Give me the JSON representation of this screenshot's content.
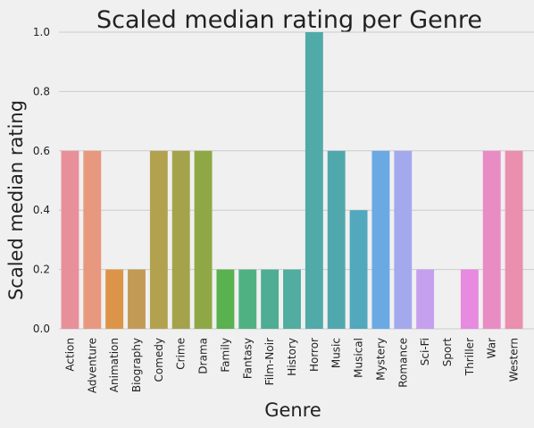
{
  "chart_data": {
    "type": "bar",
    "title": "Scaled median rating per Genre",
    "xlabel": "Genre",
    "ylabel": "Scaled median rating",
    "ylim": [
      0,
      1.0
    ],
    "yticks": [
      "0.0",
      "0.2",
      "0.4",
      "0.6",
      "0.8",
      "1.0"
    ],
    "grid": true,
    "categories": [
      "Action",
      "Adventure",
      "Animation",
      "Biography",
      "Comedy",
      "Crime",
      "Drama",
      "Family",
      "Fantasy",
      "Film-Noir",
      "History",
      "Horror",
      "Music",
      "Musical",
      "Mystery",
      "Romance",
      "Sci-Fi",
      "Sport",
      "Thriller",
      "War",
      "Western"
    ],
    "values": [
      0.6,
      0.6,
      0.2,
      0.2,
      0.6,
      0.6,
      0.6,
      0.2,
      0.2,
      0.2,
      0.2,
      1.0,
      0.6,
      0.4,
      0.6,
      0.6,
      0.2,
      0.0,
      0.2,
      0.6,
      0.6
    ],
    "colors": [
      "#e8909a",
      "#e8987e",
      "#dc9448",
      "#c29a56",
      "#b2a250",
      "#a4a24a",
      "#8fa845",
      "#5ab14f",
      "#4fb181",
      "#4fad94",
      "#50ad9f",
      "#50aaa8",
      "#51a8ac",
      "#52a8bc",
      "#6aa9e3",
      "#a4a8ec",
      "#c4a0ee",
      "#dd99e6",
      "#e78ae0",
      "#ea8cc4",
      "#ea8fae"
    ]
  }
}
